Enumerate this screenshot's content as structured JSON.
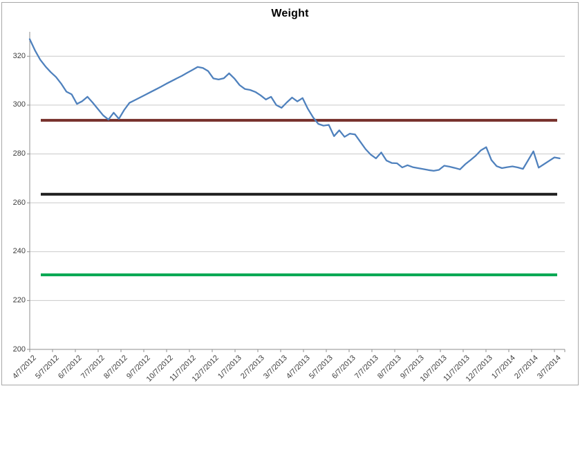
{
  "chart_data": {
    "type": "line",
    "title": "Weight",
    "legend": false,
    "grid": true,
    "y_axis": {
      "min": 200,
      "max": 330,
      "tick_interval": 20,
      "tick_labels": [
        "200",
        "220",
        "240",
        "260",
        "280",
        "300",
        "320"
      ]
    },
    "x_axis": {
      "tick_labels": [
        "4/7/2012",
        "5/7/2012",
        "6/7/2012",
        "7/7/2012",
        "8/7/2012",
        "9/7/2012",
        "10/7/2012",
        "11/7/2012",
        "12/7/2012",
        "1/7/2013",
        "2/7/2013",
        "3/7/2013",
        "4/7/2013",
        "5/7/2013",
        "6/7/2013",
        "7/7/2013",
        "8/7/2013",
        "9/7/2013",
        "10/7/2013",
        "11/7/2013",
        "12/7/2013",
        "1/7/2014",
        "2/7/2014",
        "3/7/2014"
      ]
    },
    "series": [
      {
        "name": "weight",
        "color": "#4F81BD",
        "stroke_width": 2.3,
        "start_date": "4/7/2012",
        "interval_days": 7,
        "values": [
          327,
          322.4,
          318.6,
          315.8,
          313.5,
          311.5,
          308.8,
          305.5,
          304.4,
          300.5,
          301.6,
          303.4,
          301,
          298.4,
          295.8,
          294.1,
          296.9,
          294.4,
          298,
          300.9,
          302,
          303.1,
          304.2,
          305.3,
          306.4,
          307.5,
          308.7,
          309.8,
          310.9,
          312,
          313.2,
          314.4,
          315.6,
          315.2,
          313.9,
          310.9,
          310.5,
          311,
          313,
          310.9,
          308.2,
          306.6,
          306.2,
          305.4,
          304,
          302.3,
          303.4,
          300,
          298.9,
          301.1,
          303.1,
          301.5,
          302.9,
          298.5,
          295,
          292.3,
          291.6,
          291.9,
          287.3,
          289.7,
          287,
          288.3,
          288,
          285,
          282,
          279.7,
          278.2,
          280.6,
          277.3,
          276.3,
          276.2,
          274.5,
          275.4,
          274.6,
          274.2,
          273.8,
          273.4,
          273.1,
          273.5,
          275.2,
          274.8,
          274.3,
          273.7,
          275.8,
          277.5,
          279.3,
          281.5,
          282.8,
          277.5,
          275,
          274.2,
          274.6,
          274.9,
          274.5,
          273.9,
          277.5,
          281.1,
          274.4,
          275.8,
          277.2,
          278.6,
          278.2
        ]
      }
    ],
    "reference_lines": [
      {
        "name": "upper-reference-line",
        "value": 293.8,
        "color": "#77302B",
        "stroke_width": 4
      },
      {
        "name": "middle-reference-line",
        "value": 263.5,
        "color": "#1F1F1F",
        "stroke_width": 4
      },
      {
        "name": "lower-reference-line",
        "value": 230.5,
        "color": "#00A64F",
        "stroke_width": 4
      }
    ],
    "colors": {
      "gridline": "#C9C9C9",
      "axis": "#8E8E8E",
      "tick_label": "#3D3D3D",
      "title": "#000000",
      "chart_border": "#A7A7A7",
      "background": "#FFFFFF"
    }
  }
}
